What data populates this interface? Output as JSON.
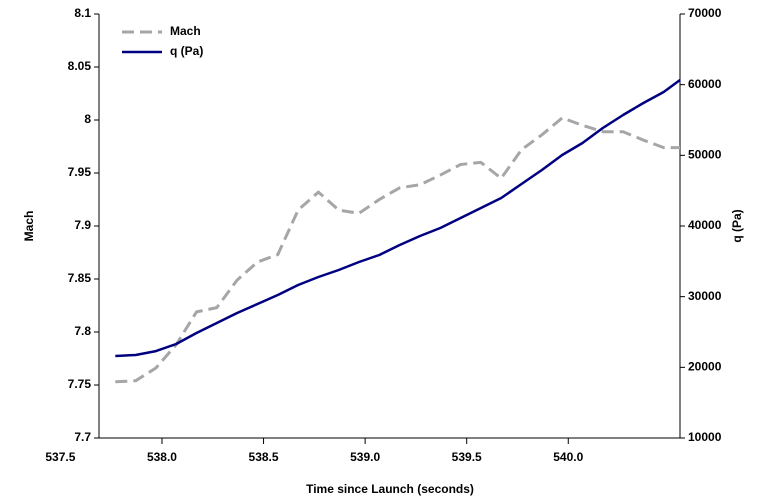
{
  "chart_data": {
    "type": "line",
    "x_label": "Time since Launch (seconds)",
    "y_label": "Mach",
    "y2_label": "q (Pa)",
    "legend": "top-left",
    "grid": false,
    "x": [
      537.77,
      537.87,
      537.97,
      538.07,
      538.17,
      538.27,
      538.37,
      538.47,
      538.57,
      538.67,
      538.77,
      538.87,
      538.97,
      539.07,
      539.17,
      539.27,
      539.37,
      539.47,
      539.57,
      539.67,
      539.77,
      539.87,
      539.97,
      540.07,
      540.17,
      540.27,
      540.37,
      540.47,
      540.55
    ],
    "xlim": [
      537.69,
      540.55
    ],
    "xticks": [
      {
        "value": 537.5,
        "label": "537.5"
      },
      {
        "value": 538.0,
        "label": "538.0"
      },
      {
        "value": 538.5,
        "label": "538.5"
      },
      {
        "value": 539.0,
        "label": "539.0"
      },
      {
        "value": 539.5,
        "label": "539.5"
      },
      {
        "value": 540.0,
        "label": "540.0"
      }
    ],
    "ylim": [
      7.7,
      8.1
    ],
    "yticks": [
      7.7,
      7.75,
      7.8,
      7.85,
      7.9,
      7.95,
      8,
      8.05,
      8.1
    ],
    "y2lim": [
      10000,
      70000
    ],
    "y2ticks": [
      10000,
      20000,
      30000,
      40000,
      50000,
      60000,
      70000
    ],
    "series": [
      {
        "name": "Mach",
        "color": "#a6a6a6",
        "dashed": true,
        "values": [
          7.753,
          7.754,
          7.766,
          7.788,
          7.819,
          7.823,
          7.849,
          7.866,
          7.873,
          7.915,
          7.932,
          7.915,
          7.912,
          7.925,
          7.936,
          7.939,
          7.948,
          7.958,
          7.96,
          7.945,
          7.972,
          7.986,
          8.002,
          7.995,
          7.989,
          7.989,
          7.981,
          7.974,
          7.974
        ]
      },
      {
        "name": "q (Pa)",
        "color": "#000080",
        "dashed": false,
        "axis": "y2",
        "values": [
          21600,
          21750,
          22300,
          23300,
          24860,
          26270,
          27690,
          28960,
          30240,
          31650,
          32780,
          33770,
          34900,
          35900,
          37310,
          38580,
          39720,
          41130,
          42550,
          43960,
          45940,
          47920,
          50050,
          51740,
          53870,
          55710,
          57400,
          58960,
          60660
        ]
      }
    ]
  }
}
